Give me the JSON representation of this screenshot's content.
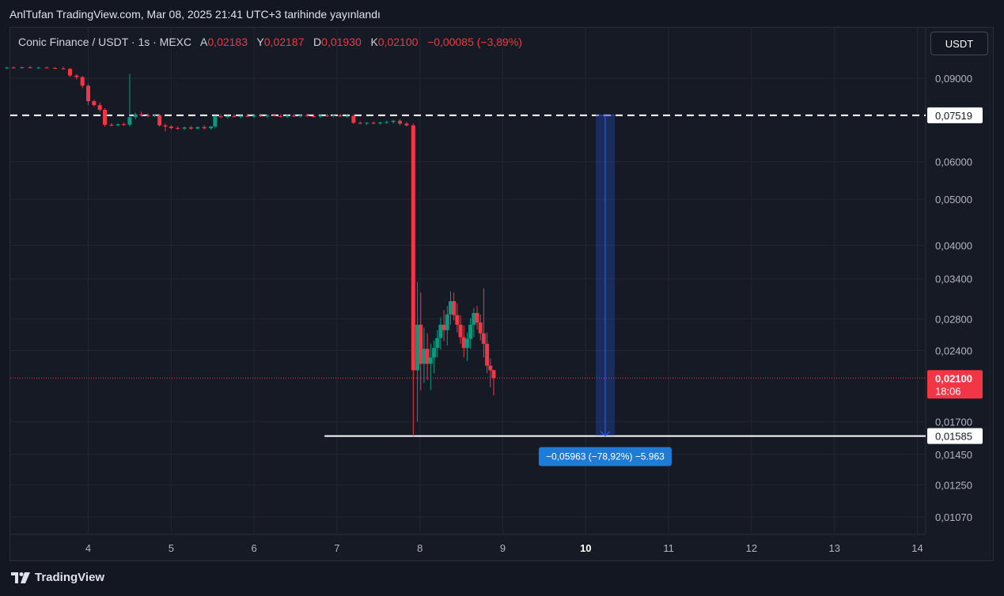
{
  "header": {
    "published_text": "AnlTufan TradingView.com, Mar 08, 2025 21:41 UTC+3 tarihinde yayınlandı"
  },
  "legend": {
    "symbol": "Conic Finance / USDT · 1s · MEXC",
    "open_label": "A",
    "open_value": "0,02183",
    "high_label": "Y",
    "high_value": "0,02187",
    "low_label": "D",
    "low_value": "0,01930",
    "close_label": "K",
    "close_value": "0,02100",
    "change": "−0,00085 (−3,89%)"
  },
  "toolbar": {
    "currency_button": "USDT"
  },
  "footer": {
    "brand": "TradingView"
  },
  "colors": {
    "up": "#089981",
    "down": "#f23645",
    "background": "#161a25",
    "measure": "#2962ff",
    "measure_label_bg": "#1e7bd6",
    "grid": "#232631"
  },
  "chart_data": {
    "type": "candlestick",
    "y_scale": "log",
    "y_tick_labels": [
      "0,09000",
      "0,06000",
      "0,05000",
      "0,04000",
      "0,03400",
      "0,02800",
      "0,02400",
      "0,01700",
      "0,01450",
      "0,01250",
      "0,01070"
    ],
    "y_ticks": [
      0.09,
      0.06,
      0.05,
      0.04,
      0.034,
      0.028,
      0.024,
      0.017,
      0.0145,
      0.0125,
      0.0107
    ],
    "x_tick_labels": [
      "4",
      "5",
      "6",
      "7",
      "8",
      "9",
      "10",
      "11",
      "12",
      "13",
      "14"
    ],
    "x_ticks": [
      4,
      5,
      6,
      7,
      8,
      9,
      10,
      11,
      12,
      13,
      14
    ],
    "x_bold_tick": 10,
    "xlim": [
      3.06,
      14.1
    ],
    "ylim": [
      0.01,
      0.107
    ],
    "last_price": {
      "value": 0.021,
      "label": "0,02100",
      "countdown": "18:06"
    },
    "horizontal_lines": [
      {
        "value": 0.07519,
        "label": "0,07519",
        "style": "dashed"
      },
      {
        "value": 0.01585,
        "label": "0,01585",
        "style": "solid",
        "x_start": 6.85
      }
    ],
    "measurement": {
      "x_start": 10.12,
      "x_end": 10.35,
      "from": 0.07519,
      "to": 0.01585,
      "label": "−0,05963 (−78,92%) −5.963"
    },
    "candles": [
      [
        3.02,
        0.0945,
        0.0952,
        0.0941,
        0.0948
      ],
      [
        3.1,
        0.0948,
        0.0953,
        0.0944,
        0.0947
      ],
      [
        3.2,
        0.0947,
        0.0953,
        0.0943,
        0.0949
      ],
      [
        3.3,
        0.0949,
        0.0955,
        0.0945,
        0.0946
      ],
      [
        3.4,
        0.0946,
        0.0951,
        0.0942,
        0.0948
      ],
      [
        3.5,
        0.0948,
        0.0952,
        0.0944,
        0.0946
      ],
      [
        3.6,
        0.0946,
        0.095,
        0.0941,
        0.0944
      ],
      [
        3.7,
        0.0944,
        0.0952,
        0.0938,
        0.0942
      ],
      [
        3.78,
        0.0942,
        0.0946,
        0.0905,
        0.0912
      ],
      [
        3.86,
        0.0912,
        0.0918,
        0.0895,
        0.0905
      ],
      [
        3.93,
        0.0905,
        0.091,
        0.0858,
        0.0868
      ],
      [
        4.0,
        0.0868,
        0.0875,
        0.079,
        0.0805
      ],
      [
        4.07,
        0.0805,
        0.0812,
        0.0785,
        0.079
      ],
      [
        4.14,
        0.079,
        0.08,
        0.0765,
        0.0772
      ],
      [
        4.2,
        0.0772,
        0.0778,
        0.0712,
        0.0718
      ],
      [
        4.28,
        0.0718,
        0.0724,
        0.0712,
        0.0716
      ],
      [
        4.36,
        0.0716,
        0.0722,
        0.0713,
        0.072
      ],
      [
        4.43,
        0.072,
        0.0726,
        0.0714,
        0.0718
      ],
      [
        4.5,
        0.0718,
        0.092,
        0.0712,
        0.0745
      ],
      [
        4.57,
        0.0745,
        0.0762,
        0.0738,
        0.0755
      ],
      [
        4.64,
        0.0755,
        0.0765,
        0.0748,
        0.0752
      ],
      [
        4.72,
        0.0752,
        0.0758,
        0.0745,
        0.0749
      ],
      [
        4.8,
        0.0749,
        0.0755,
        0.0745,
        0.0752
      ],
      [
        4.86,
        0.0752,
        0.0756,
        0.0712,
        0.0716
      ],
      [
        4.93,
        0.0716,
        0.0722,
        0.0695,
        0.0712
      ],
      [
        5.0,
        0.0712,
        0.0716,
        0.0702,
        0.0707
      ],
      [
        5.08,
        0.0707,
        0.0712,
        0.0701,
        0.0705
      ],
      [
        5.16,
        0.0705,
        0.0712,
        0.07,
        0.0709
      ],
      [
        5.24,
        0.0709,
        0.0714,
        0.0701,
        0.0705
      ],
      [
        5.32,
        0.0705,
        0.0712,
        0.0702,
        0.071
      ],
      [
        5.4,
        0.071,
        0.0716,
        0.0702,
        0.0706
      ],
      [
        5.48,
        0.0706,
        0.0714,
        0.0701,
        0.0712
      ],
      [
        5.53,
        0.0712,
        0.0752,
        0.0705,
        0.0748
      ],
      [
        5.6,
        0.0748,
        0.0755,
        0.0742,
        0.0745
      ],
      [
        5.68,
        0.0745,
        0.0752,
        0.074,
        0.0749
      ],
      [
        5.76,
        0.0749,
        0.0756,
        0.0744,
        0.0746
      ],
      [
        5.84,
        0.0746,
        0.0752,
        0.0741,
        0.075
      ],
      [
        5.92,
        0.075,
        0.0756,
        0.0745,
        0.0747
      ],
      [
        6.0,
        0.0747,
        0.0755,
        0.0741,
        0.0751
      ],
      [
        6.08,
        0.0751,
        0.0757,
        0.0746,
        0.0748
      ],
      [
        6.16,
        0.0748,
        0.0755,
        0.0742,
        0.0752
      ],
      [
        6.24,
        0.0752,
        0.0758,
        0.0747,
        0.0749
      ],
      [
        6.32,
        0.0749,
        0.0756,
        0.0744,
        0.0747
      ],
      [
        6.4,
        0.0747,
        0.0754,
        0.0742,
        0.0751
      ],
      [
        6.48,
        0.0751,
        0.0757,
        0.0745,
        0.0748
      ],
      [
        6.56,
        0.0748,
        0.0755,
        0.0743,
        0.0752
      ],
      [
        6.64,
        0.0752,
        0.0758,
        0.0746,
        0.0749
      ],
      [
        6.72,
        0.0749,
        0.0755,
        0.0744,
        0.0747
      ],
      [
        6.8,
        0.0747,
        0.0754,
        0.0742,
        0.0751
      ],
      [
        6.88,
        0.0751,
        0.0757,
        0.0746,
        0.0749
      ],
      [
        6.96,
        0.0749,
        0.0755,
        0.0744,
        0.0752
      ],
      [
        7.04,
        0.0752,
        0.0757,
        0.0745,
        0.0748
      ],
      [
        7.12,
        0.0748,
        0.0754,
        0.0743,
        0.075
      ],
      [
        7.2,
        0.075,
        0.0755,
        0.0721,
        0.0725
      ],
      [
        7.28,
        0.0725,
        0.073,
        0.072,
        0.0722
      ],
      [
        7.36,
        0.0722,
        0.0728,
        0.0717,
        0.0725
      ],
      [
        7.44,
        0.0725,
        0.073,
        0.072,
        0.0723
      ],
      [
        7.52,
        0.0723,
        0.0729,
        0.0718,
        0.0726
      ],
      [
        7.6,
        0.0726,
        0.0733,
        0.0721,
        0.0728
      ],
      [
        7.68,
        0.0728,
        0.0736,
        0.0722,
        0.0732
      ],
      [
        7.76,
        0.0732,
        0.0738,
        0.0716,
        0.0722
      ],
      [
        7.84,
        0.0722,
        0.0728,
        0.0712,
        0.0716
      ],
      [
        7.92,
        0.0716,
        0.0722,
        0.01585,
        0.0218
      ],
      [
        7.97,
        0.0218,
        0.0335,
        0.017,
        0.0272
      ],
      [
        8.01,
        0.0272,
        0.0318,
        0.0198,
        0.0225
      ],
      [
        8.05,
        0.0225,
        0.0268,
        0.0205,
        0.0242
      ],
      [
        8.09,
        0.0242,
        0.0261,
        0.0208,
        0.0225
      ],
      [
        8.13,
        0.0225,
        0.0248,
        0.0198,
        0.0232
      ],
      [
        8.17,
        0.0232,
        0.0252,
        0.0215,
        0.0243
      ],
      [
        8.21,
        0.0243,
        0.0265,
        0.0232,
        0.0255
      ],
      [
        8.25,
        0.0255,
        0.0282,
        0.0241,
        0.0272
      ],
      [
        8.29,
        0.0272,
        0.0292,
        0.0251,
        0.0265
      ],
      [
        8.33,
        0.0265,
        0.0298,
        0.0246,
        0.0286
      ],
      [
        8.37,
        0.0286,
        0.032,
        0.0272,
        0.0305
      ],
      [
        8.41,
        0.0305,
        0.0318,
        0.0278,
        0.0285
      ],
      [
        8.45,
        0.0285,
        0.0302,
        0.0262,
        0.0272
      ],
      [
        8.49,
        0.0272,
        0.0285,
        0.0248,
        0.0256
      ],
      [
        8.53,
        0.0256,
        0.0271,
        0.0232,
        0.0243
      ],
      [
        8.57,
        0.0243,
        0.0262,
        0.0228,
        0.0254
      ],
      [
        8.61,
        0.0254,
        0.0281,
        0.0242,
        0.0272
      ],
      [
        8.65,
        0.0272,
        0.0295,
        0.0256,
        0.0288
      ],
      [
        8.69,
        0.0288,
        0.0298,
        0.0266,
        0.0275
      ],
      [
        8.73,
        0.0275,
        0.0286,
        0.0252,
        0.0261
      ],
      [
        8.77,
        0.0261,
        0.0325,
        0.0232,
        0.0248
      ],
      [
        8.81,
        0.0248,
        0.0262,
        0.0215,
        0.0223
      ],
      [
        8.85,
        0.0223,
        0.0231,
        0.0201,
        0.0218
      ],
      [
        8.89,
        0.02183,
        0.02187,
        0.0193,
        0.021
      ]
    ]
  }
}
